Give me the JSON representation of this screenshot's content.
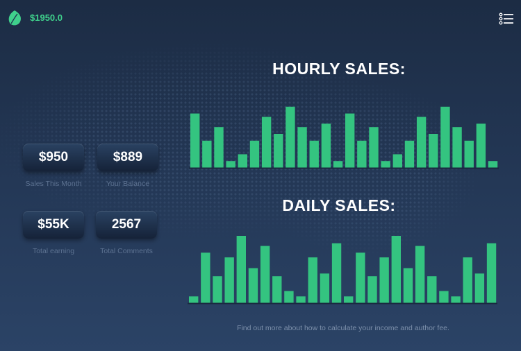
{
  "header": {
    "balance": "$1950.0",
    "logo_icon": "leaf-icon",
    "menu_icon": "list-menu-icon"
  },
  "stats": [
    {
      "value": "$950",
      "label": "Sales This Month"
    },
    {
      "value": "$889",
      "label": "Your Balance"
    },
    {
      "value": "$55K",
      "label": "Total earning"
    },
    {
      "value": "2567",
      "label": "Total Comments"
    }
  ],
  "colors": {
    "accent": "#3fd08c",
    "bar": "#34c480",
    "background_top": "#1c2c44",
    "background_bottom": "#2b4366"
  },
  "chart_data": [
    {
      "type": "bar",
      "title": "HOURLY SALES:",
      "values": [
        8,
        4,
        6,
        1,
        2,
        4,
        7.5,
        5,
        9,
        6,
        4,
        6.5,
        1,
        8,
        4,
        6,
        1,
        2,
        4,
        7.5,
        5,
        9,
        6,
        4,
        6.5,
        1
      ],
      "ylim": [
        0,
        10
      ],
      "grid": false
    },
    {
      "type": "bar",
      "title": "DAILY SALES:",
      "values": [
        1,
        7.5,
        4,
        6.8,
        10,
        5.2,
        8.5,
        4,
        1.8,
        1,
        6.8,
        4.4,
        8.9,
        1,
        7.5,
        4,
        6.8,
        10,
        5.2,
        8.5,
        4,
        1.8,
        1,
        6.8,
        4.4,
        8.9
      ],
      "ylim": [
        0,
        10
      ],
      "grid": false
    }
  ],
  "footer": {
    "note": "Find out more about how to calculate your income and author fee."
  }
}
